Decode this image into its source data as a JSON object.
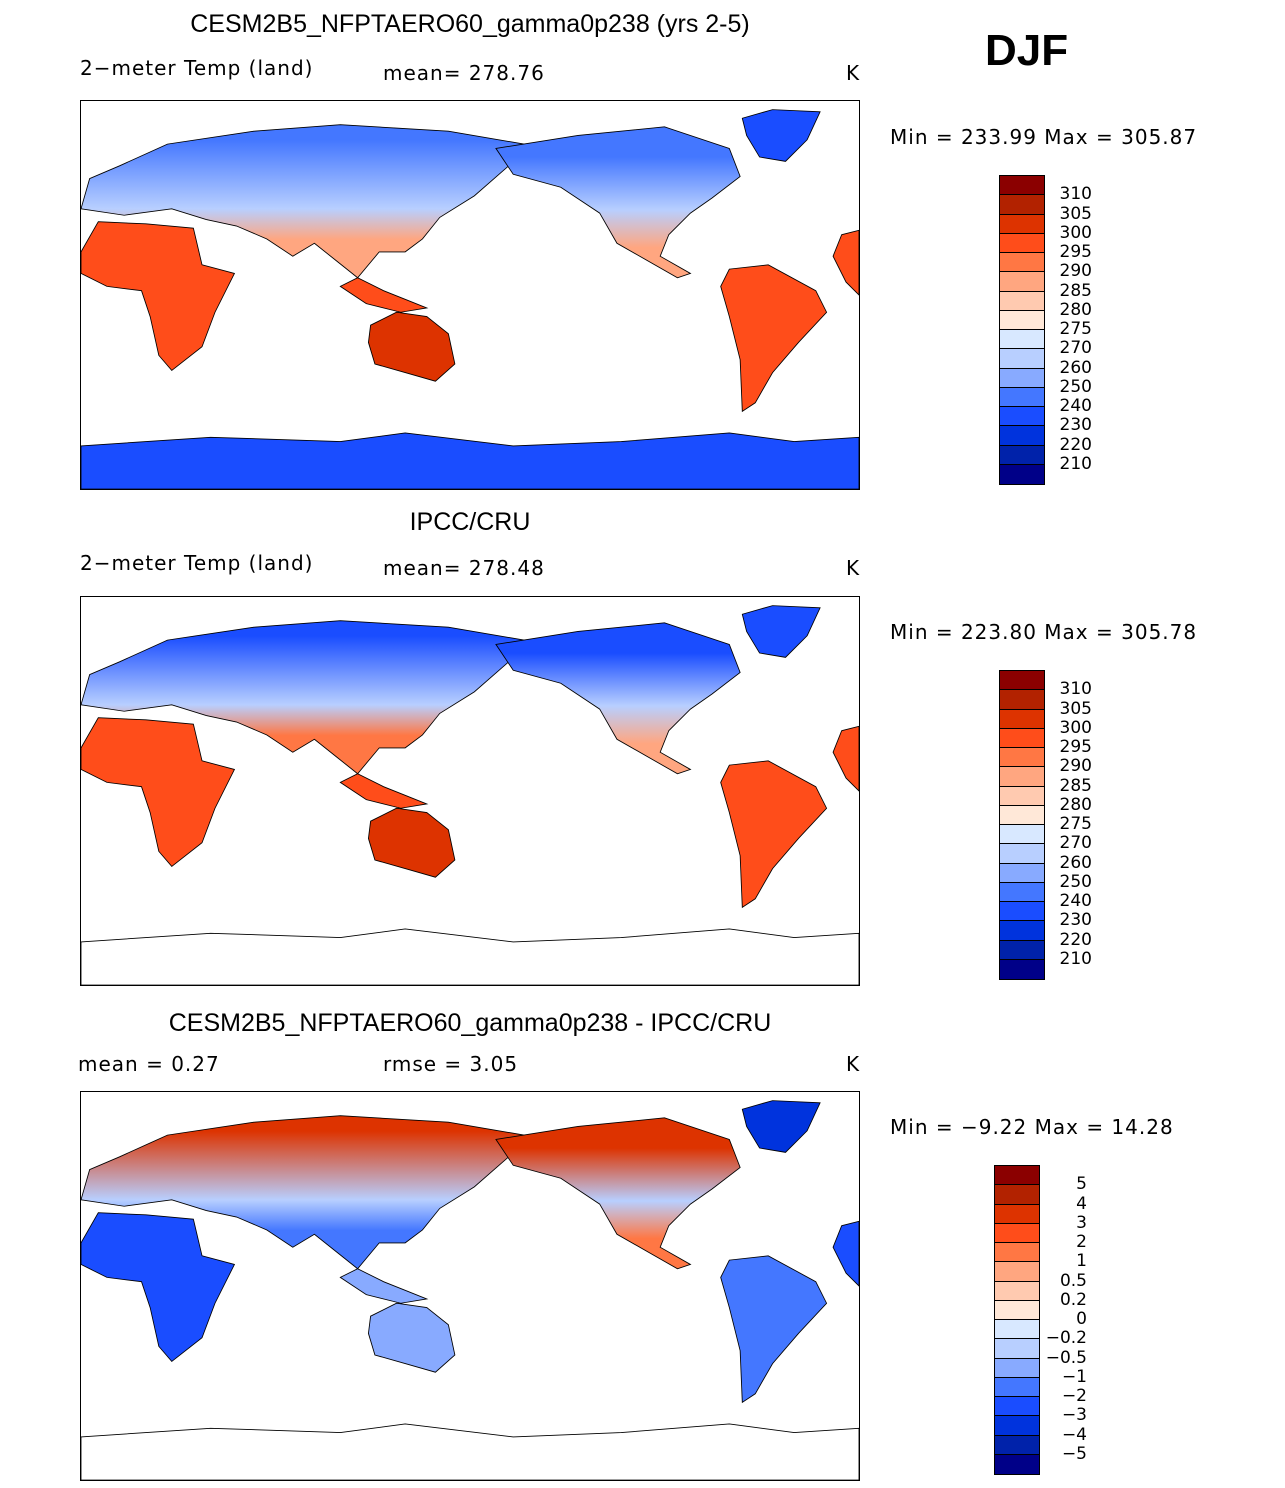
{
  "season": "DJF",
  "palette": [
    "#8b0000",
    "#b22200",
    "#dd3300",
    "#ff4d1a",
    "#ff7744",
    "#ffa680",
    "#ffcab0",
    "#ffe8d8",
    "#d8e8ff",
    "#b8cfff",
    "#88aaff",
    "#4477ff",
    "#1a4dff",
    "#0033dd",
    "#0022aa",
    "#000088"
  ],
  "panels": [
    {
      "title": "CESM2B5_NFPTAERO60_gamma0p238 (yrs 2-5)",
      "left_label": "2−meter Temp (land)",
      "center_label": "mean=  278.76",
      "units": "K",
      "minmax": "Min  =  233.99  Max  =  305.87",
      "levels": [
        "310",
        "305",
        "300",
        "295",
        "290",
        "285",
        "280",
        "275",
        "270",
        "260",
        "250",
        "240",
        "230",
        "220",
        "210"
      ],
      "fills": {
        "eurasia_top": "#4477ff",
        "eurasia_bottom": "#ffa680",
        "africa": "#ff4d1a",
        "australia": "#dd3300",
        "namerica_top": "#4477ff",
        "namerica_bottom": "#ffa680",
        "samerica": "#ff4d1a",
        "greenland": "#1a4dff",
        "antarctica": "#1a4dff",
        "seasia": "#ff4d1a"
      }
    },
    {
      "title": "IPCC/CRU",
      "left_label": "2−meter Temp (land)",
      "center_label": "mean=  278.48",
      "units": "K",
      "minmax": "Min  =  223.80  Max  =  305.78",
      "levels": [
        "310",
        "305",
        "300",
        "295",
        "290",
        "285",
        "280",
        "275",
        "270",
        "260",
        "250",
        "240",
        "230",
        "220",
        "210"
      ],
      "fills": {
        "eurasia_top": "#1a4dff",
        "eurasia_bottom": "#ff7744",
        "africa": "#ff4d1a",
        "australia": "#dd3300",
        "namerica_top": "#1a4dff",
        "namerica_bottom": "#ffa680",
        "samerica": "#ff4d1a",
        "greenland": "#1a4dff",
        "antarctica": "#ffffff",
        "seasia": "#ff4d1a"
      }
    },
    {
      "title": "CESM2B5_NFPTAERO60_gamma0p238 - IPCC/CRU",
      "left_label": "mean  =     0.27",
      "center_label": "rmse  =     3.05",
      "units": "K",
      "minmax": "Min  =    −9.22  Max  =    14.28",
      "levels": [
        "5",
        "4",
        "3",
        "2",
        "1",
        "0.5",
        "0.2",
        "0",
        "−0.2",
        "−0.5",
        "−1",
        "−2",
        "−3",
        "−4",
        "−5"
      ],
      "fills": {
        "eurasia_top": "#dd3300",
        "eurasia_bottom": "#4477ff",
        "africa": "#1a4dff",
        "australia": "#88aaff",
        "namerica_top": "#dd3300",
        "namerica_bottom": "#ff7744",
        "samerica": "#4477ff",
        "greenland": "#0033dd",
        "antarctica": "#ffffff",
        "seasia": "#88aaff"
      }
    }
  ]
}
